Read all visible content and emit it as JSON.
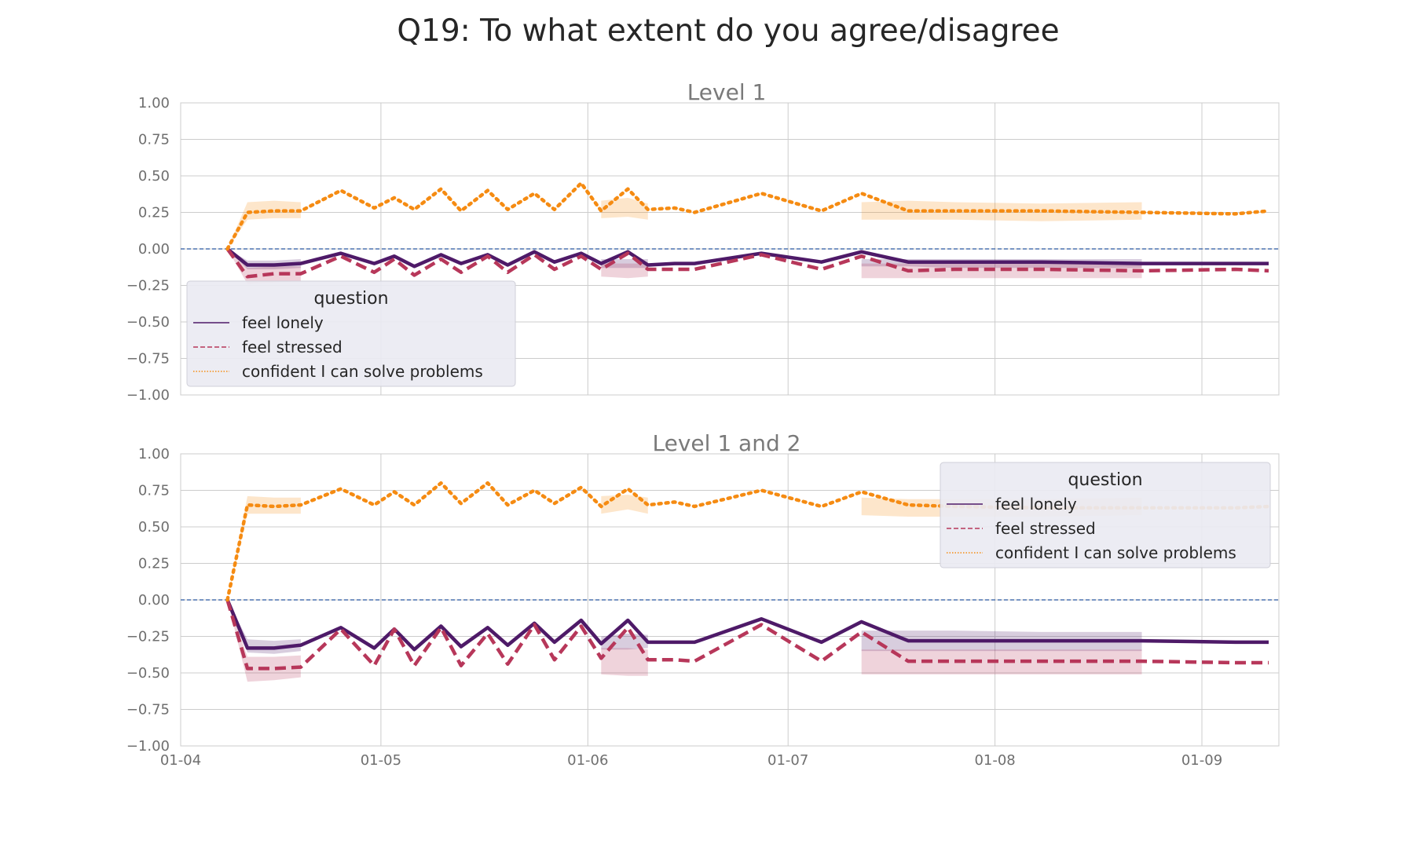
{
  "figure": {
    "title": "Q19: To what extent do you agree/disagree"
  },
  "legend_labels": {
    "lonely": "feel lonely",
    "stressed": "feel stressed",
    "confident": "confident I can solve problems"
  },
  "colors": {
    "lonely": "#4e1a68",
    "stressed": "#b7375a",
    "confident": "#f58b12",
    "zero_line": "#4c72b0",
    "grid": "#cccccc",
    "tick_text": "#6f6f6f",
    "subtitle_text": "#7a7a7a"
  },
  "chart_data": [
    {
      "type": "line",
      "title": "Level 1",
      "xlabel": "",
      "ylabel": "",
      "x_ticks": [
        "01-04",
        "01-05",
        "01-06",
        "01-07",
        "01-08",
        "01-09"
      ],
      "x_tick_labels_shown": false,
      "ylim": [
        -1.0,
        1.0
      ],
      "y_ticks": [
        "1.00",
        "0.75",
        "0.50",
        "0.25",
        "0.00",
        "−0.25",
        "−0.50",
        "−0.75",
        "−1.00"
      ],
      "grid": true,
      "zero_reference_line": 0,
      "legend": {
        "title": "question",
        "placement": "lower-left"
      },
      "x": [
        "2020-04-08",
        "2020-04-11",
        "2020-04-15",
        "2020-04-19",
        "2020-04-25",
        "2020-04-30",
        "2020-05-03",
        "2020-05-06",
        "2020-05-10",
        "2020-05-13",
        "2020-05-17",
        "2020-05-20",
        "2020-05-24",
        "2020-05-27",
        "2020-05-31",
        "2020-06-03",
        "2020-06-07",
        "2020-06-10",
        "2020-06-14",
        "2020-06-17",
        "2020-06-27",
        "2020-07-06",
        "2020-07-12",
        "2020-07-19",
        "2020-07-26",
        "2020-08-08",
        "2020-08-23",
        "2020-09-06",
        "2020-09-11"
      ],
      "series": [
        {
          "name": "feel lonely",
          "line_style": "solid",
          "values": [
            0.0,
            -0.11,
            -0.11,
            -0.1,
            -0.03,
            -0.1,
            -0.05,
            -0.12,
            -0.04,
            -0.1,
            -0.04,
            -0.11,
            -0.02,
            -0.09,
            -0.03,
            -0.1,
            -0.02,
            -0.11,
            -0.1,
            -0.1,
            -0.03,
            -0.09,
            -0.02,
            -0.09,
            -0.09,
            -0.09,
            -0.1,
            -0.1,
            -0.1
          ],
          "band": [
            [
              0.0,
              0.0
            ],
            [
              -0.14,
              -0.08
            ],
            [
              -0.14,
              -0.08
            ],
            [
              -0.13,
              -0.07
            ],
            null,
            null,
            null,
            null,
            null,
            null,
            null,
            null,
            null,
            null,
            null,
            [
              -0.13,
              -0.07
            ],
            [
              -0.13,
              -0.07
            ],
            [
              -0.13,
              -0.07
            ],
            null,
            null,
            null,
            null,
            [
              -0.12,
              -0.07
            ],
            [
              -0.12,
              -0.07
            ],
            [
              -0.13,
              -0.07
            ],
            [
              -0.13,
              -0.07
            ],
            [
              -0.13,
              -0.07
            ],
            null,
            null
          ]
        },
        {
          "name": "feel stressed",
          "line_style": "dashed",
          "values": [
            0.0,
            -0.19,
            -0.17,
            -0.17,
            -0.05,
            -0.16,
            -0.07,
            -0.18,
            -0.07,
            -0.16,
            -0.05,
            -0.16,
            -0.04,
            -0.14,
            -0.05,
            -0.14,
            -0.03,
            -0.14,
            -0.14,
            -0.14,
            -0.04,
            -0.14,
            -0.05,
            -0.15,
            -0.14,
            -0.14,
            -0.15,
            -0.14,
            -0.15
          ],
          "band": [
            [
              0.0,
              0.0
            ],
            [
              -0.24,
              -0.13
            ],
            [
              -0.23,
              -0.12
            ],
            [
              -0.22,
              -0.12
            ],
            null,
            null,
            null,
            null,
            null,
            null,
            null,
            null,
            null,
            null,
            null,
            [
              -0.19,
              -0.1
            ],
            [
              -0.2,
              -0.1
            ],
            [
              -0.19,
              -0.1
            ],
            null,
            null,
            null,
            null,
            [
              -0.2,
              -0.1
            ],
            [
              -0.2,
              -0.1
            ],
            [
              -0.2,
              -0.1
            ],
            [
              -0.2,
              -0.1
            ],
            [
              -0.2,
              -0.1
            ],
            null,
            null
          ]
        },
        {
          "name": "confident I can solve problems",
          "line_style": "dotted",
          "values": [
            0.0,
            0.25,
            0.26,
            0.26,
            0.4,
            0.28,
            0.35,
            0.27,
            0.41,
            0.26,
            0.4,
            0.27,
            0.38,
            0.27,
            0.45,
            0.26,
            0.41,
            0.27,
            0.28,
            0.25,
            0.38,
            0.26,
            0.38,
            0.26,
            0.26,
            0.26,
            0.25,
            0.24,
            0.26
          ],
          "band": [
            [
              0.0,
              0.0
            ],
            [
              0.2,
              0.32
            ],
            [
              0.21,
              0.33
            ],
            [
              0.21,
              0.32
            ],
            null,
            null,
            null,
            null,
            null,
            null,
            null,
            null,
            null,
            null,
            null,
            [
              0.21,
              0.33
            ],
            [
              0.22,
              0.35
            ],
            [
              0.2,
              0.31
            ],
            null,
            null,
            null,
            null,
            [
              0.2,
              0.32
            ],
            [
              0.2,
              0.33
            ],
            [
              0.2,
              0.32
            ],
            [
              0.19,
              0.31
            ],
            [
              0.2,
              0.32
            ],
            null,
            null
          ]
        }
      ]
    },
    {
      "type": "line",
      "title": "Level 1 and 2",
      "xlabel": "",
      "ylabel": "",
      "x_ticks": [
        "01-04",
        "01-05",
        "01-06",
        "01-07",
        "01-08",
        "01-09"
      ],
      "x_tick_labels_shown": true,
      "ylim": [
        -1.0,
        1.0
      ],
      "y_ticks": [
        "1.00",
        "0.75",
        "0.50",
        "0.25",
        "0.00",
        "−0.25",
        "−0.50",
        "−0.75",
        "−1.00"
      ],
      "grid": true,
      "zero_reference_line": 0,
      "legend": {
        "title": "question",
        "placement": "upper-right"
      },
      "x": [
        "2020-04-08",
        "2020-04-11",
        "2020-04-15",
        "2020-04-19",
        "2020-04-25",
        "2020-04-30",
        "2020-05-03",
        "2020-05-06",
        "2020-05-10",
        "2020-05-13",
        "2020-05-17",
        "2020-05-20",
        "2020-05-24",
        "2020-05-27",
        "2020-05-31",
        "2020-06-03",
        "2020-06-07",
        "2020-06-10",
        "2020-06-14",
        "2020-06-17",
        "2020-06-27",
        "2020-07-06",
        "2020-07-12",
        "2020-07-19",
        "2020-07-26",
        "2020-08-08",
        "2020-08-23",
        "2020-09-06",
        "2020-09-11"
      ],
      "series": [
        {
          "name": "feel lonely",
          "line_style": "solid",
          "values": [
            0.0,
            -0.33,
            -0.33,
            -0.31,
            -0.19,
            -0.33,
            -0.2,
            -0.34,
            -0.18,
            -0.32,
            -0.19,
            -0.31,
            -0.16,
            -0.29,
            -0.14,
            -0.3,
            -0.14,
            -0.29,
            -0.29,
            -0.29,
            -0.13,
            -0.29,
            -0.15,
            -0.28,
            -0.28,
            -0.28,
            -0.28,
            -0.29,
            -0.29
          ],
          "band": [
            [
              0.0,
              0.0
            ],
            [
              -0.36,
              -0.27
            ],
            [
              -0.37,
              -0.28
            ],
            [
              -0.35,
              -0.27
            ],
            null,
            null,
            null,
            null,
            null,
            null,
            null,
            null,
            null,
            null,
            null,
            [
              -0.34,
              -0.25
            ],
            [
              -0.34,
              -0.23
            ],
            [
              -0.33,
              -0.24
            ],
            null,
            null,
            null,
            null,
            [
              -0.35,
              -0.21
            ],
            [
              -0.35,
              -0.21
            ],
            [
              -0.35,
              -0.21
            ],
            [
              -0.35,
              -0.22
            ],
            [
              -0.35,
              -0.22
            ],
            null,
            null
          ]
        },
        {
          "name": "feel stressed",
          "line_style": "dashed",
          "values": [
            0.0,
            -0.47,
            -0.47,
            -0.46,
            -0.2,
            -0.45,
            -0.2,
            -0.45,
            -0.19,
            -0.45,
            -0.23,
            -0.44,
            -0.17,
            -0.41,
            -0.18,
            -0.4,
            -0.19,
            -0.41,
            -0.41,
            -0.42,
            -0.17,
            -0.42,
            -0.22,
            -0.42,
            -0.42,
            -0.42,
            -0.42,
            -0.43,
            -0.43
          ],
          "band": [
            [
              0.0,
              0.0
            ],
            [
              -0.56,
              -0.39
            ],
            [
              -0.55,
              -0.39
            ],
            [
              -0.53,
              -0.38
            ],
            null,
            null,
            null,
            null,
            null,
            null,
            null,
            null,
            null,
            null,
            null,
            [
              -0.51,
              -0.33
            ],
            [
              -0.52,
              -0.33
            ],
            [
              -0.52,
              -0.34
            ],
            null,
            null,
            null,
            null,
            [
              -0.51,
              -0.34
            ],
            [
              -0.51,
              -0.34
            ],
            [
              -0.51,
              -0.34
            ],
            [
              -0.51,
              -0.34
            ],
            [
              -0.51,
              -0.34
            ],
            null,
            null
          ]
        },
        {
          "name": "confident I can solve problems",
          "line_style": "dotted",
          "values": [
            0.0,
            0.65,
            0.64,
            0.65,
            0.76,
            0.65,
            0.74,
            0.65,
            0.8,
            0.66,
            0.8,
            0.65,
            0.75,
            0.66,
            0.77,
            0.64,
            0.76,
            0.65,
            0.67,
            0.64,
            0.75,
            0.64,
            0.74,
            0.65,
            0.64,
            0.63,
            0.63,
            0.63,
            0.64
          ],
          "band": [
            [
              0.0,
              0.0
            ],
            [
              0.59,
              0.71
            ],
            [
              0.59,
              0.7
            ],
            [
              0.59,
              0.7
            ],
            null,
            null,
            null,
            null,
            null,
            null,
            null,
            null,
            null,
            null,
            null,
            [
              0.59,
              0.71
            ],
            [
              0.62,
              0.72
            ],
            [
              0.59,
              0.7
            ],
            null,
            null,
            null,
            null,
            [
              0.58,
              0.7
            ],
            [
              0.57,
              0.69
            ],
            [
              0.57,
              0.69
            ],
            [
              0.57,
              0.69
            ],
            [
              0.58,
              0.7
            ],
            null,
            null
          ]
        }
      ]
    }
  ]
}
